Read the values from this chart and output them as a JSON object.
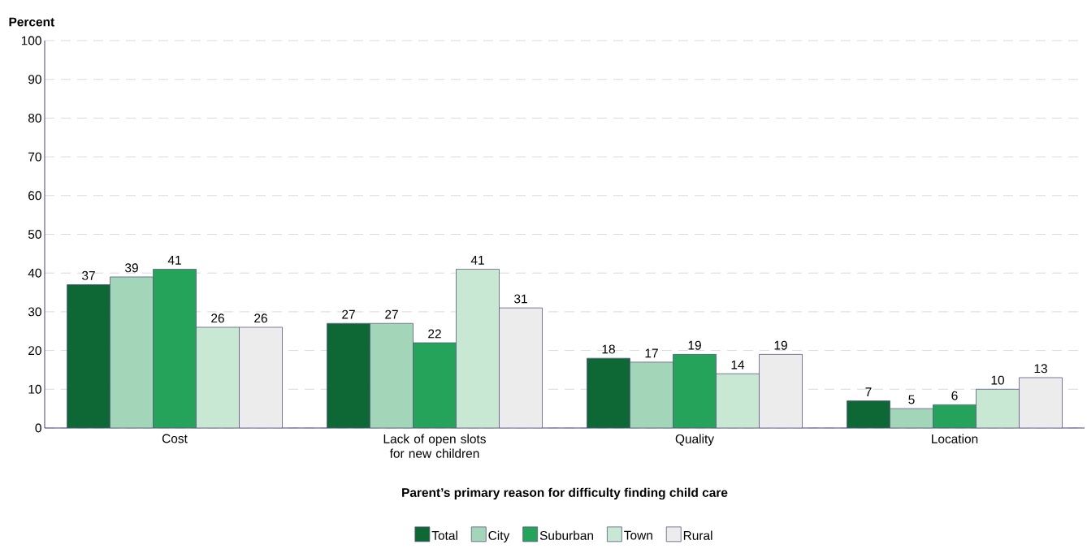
{
  "chart_data": {
    "type": "bar",
    "ylabel": "Percent",
    "xlabel": "Parent’s primary reason for difficulty finding child care",
    "categories": [
      "Cost",
      "Lack of open slots for new children",
      "Quality",
      "Location"
    ],
    "series": [
      {
        "name": "Total",
        "color": "#0e6836",
        "values": [
          37,
          27,
          18,
          7
        ]
      },
      {
        "name": "City",
        "color": "#a3d6b8",
        "values": [
          39,
          27,
          17,
          5
        ]
      },
      {
        "name": "Suburban",
        "color": "#26a35a",
        "values": [
          41,
          22,
          19,
          6
        ]
      },
      {
        "name": "Town",
        "color": "#c8e8d4",
        "values": [
          26,
          41,
          14,
          10
        ]
      },
      {
        "name": "Rural",
        "color": "#ececec",
        "values": [
          26,
          31,
          19,
          13
        ]
      }
    ],
    "ylim": [
      0,
      100
    ],
    "yticks": [
      0,
      10,
      20,
      30,
      40,
      50,
      60,
      70,
      80,
      90,
      100
    ],
    "grid": "y",
    "legend": "bottom",
    "data_labels": true
  }
}
